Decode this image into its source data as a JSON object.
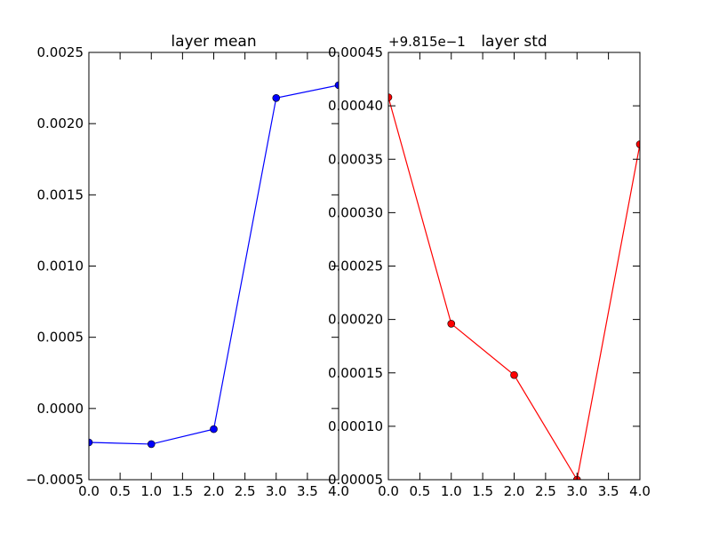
{
  "chart_data": [
    {
      "type": "line",
      "title": "layer mean",
      "x": [
        0,
        1,
        2,
        3,
        4
      ],
      "series": [
        {
          "color": "#0000ff",
          "values": [
            -0.000238,
            -0.00025,
            -0.000145,
            0.00218,
            0.00227
          ]
        }
      ],
      "xlim": [
        0,
        4
      ],
      "xticks": [
        {
          "value": 0,
          "label": "0.0"
        },
        0.5,
        {
          "value": 1,
          "label": "1.0"
        },
        1.5,
        {
          "value": 2,
          "label": "2.0"
        },
        2.5,
        {
          "value": 3,
          "label": "3.0"
        },
        3.5,
        {
          "value": 4,
          "label": "4.0"
        }
      ],
      "ylim": [
        -0.0005,
        0.0025
      ],
      "yticks": [
        {
          "value": -0.0005,
          "label": "−0.0005"
        },
        {
          "value": 0,
          "label": "0.0000"
        },
        0.0005,
        {
          "value": 0.001,
          "label": "0.0010"
        },
        0.0015,
        {
          "value": 0.002,
          "label": "0.0020"
        },
        0.0025
      ]
    },
    {
      "type": "line",
      "title": "layer std",
      "offset_text": "+9.815e−1",
      "x": [
        0,
        1,
        2,
        3,
        4
      ],
      "series": [
        {
          "color": "#ff0000",
          "values": [
            0.000408,
            0.000196,
            0.000148,
            5e-05,
            0.000364
          ]
        }
      ],
      "xlim": [
        0,
        4
      ],
      "xticks": [
        {
          "value": 0,
          "label": "0.0"
        },
        0.5,
        {
          "value": 1,
          "label": "1.0"
        },
        1.5,
        {
          "value": 2,
          "label": "2.0"
        },
        2.5,
        {
          "value": 3,
          "label": "3.0"
        },
        3.5,
        {
          "value": 4,
          "label": "4.0"
        }
      ],
      "ylim": [
        5e-05,
        0.00045
      ],
      "yticks": [
        5e-05,
        {
          "value": 0.0001,
          "label": "0.00010"
        },
        0.00015,
        {
          "value": 0.0002,
          "label": "0.00020"
        },
        0.00025,
        {
          "value": 0.0003,
          "label": "0.00030"
        },
        0.00035,
        {
          "value": 0.0004,
          "label": "0.00040"
        },
        0.00045
      ]
    }
  ]
}
